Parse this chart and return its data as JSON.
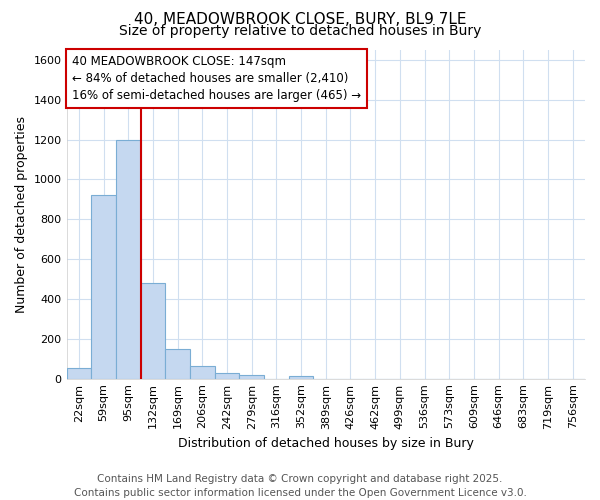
{
  "title": "40, MEADOWBROOK CLOSE, BURY, BL9 7LE",
  "subtitle": "Size of property relative to detached houses in Bury",
  "xlabel": "Distribution of detached houses by size in Bury",
  "ylabel": "Number of detached properties",
  "categories": [
    "22sqm",
    "59sqm",
    "95sqm",
    "132sqm",
    "169sqm",
    "206sqm",
    "242sqm",
    "279sqm",
    "316sqm",
    "352sqm",
    "389sqm",
    "426sqm",
    "462sqm",
    "499sqm",
    "536sqm",
    "573sqm",
    "609sqm",
    "646sqm",
    "683sqm",
    "719sqm",
    "756sqm"
  ],
  "values": [
    55,
    920,
    1200,
    480,
    150,
    65,
    30,
    20,
    0,
    15,
    0,
    0,
    0,
    0,
    0,
    0,
    0,
    0,
    0,
    0,
    0
  ],
  "bar_color": "#c5d8f0",
  "bar_edge_color": "#7aadd4",
  "marker_color": "#cc0000",
  "annotation_title": "40 MEADOWBROOK CLOSE: 147sqm",
  "annotation_line1": "← 84% of detached houses are smaller (2,410)",
  "annotation_line2": "16% of semi-detached houses are larger (465) →",
  "annotation_box_color": "#ffffff",
  "annotation_box_edge": "#cc0000",
  "ylim": [
    0,
    1650
  ],
  "yticks": [
    0,
    200,
    400,
    600,
    800,
    1000,
    1200,
    1400,
    1600
  ],
  "footer1": "Contains HM Land Registry data © Crown copyright and database right 2025.",
  "footer2": "Contains public sector information licensed under the Open Government Licence v3.0.",
  "bg_color": "#ffffff",
  "plot_bg_color": "#ffffff",
  "grid_color": "#d0dff0",
  "title_fontsize": 11,
  "subtitle_fontsize": 10,
  "axis_label_fontsize": 9,
  "tick_fontsize": 8,
  "footer_fontsize": 7.5,
  "annotation_fontsize": 8.5
}
